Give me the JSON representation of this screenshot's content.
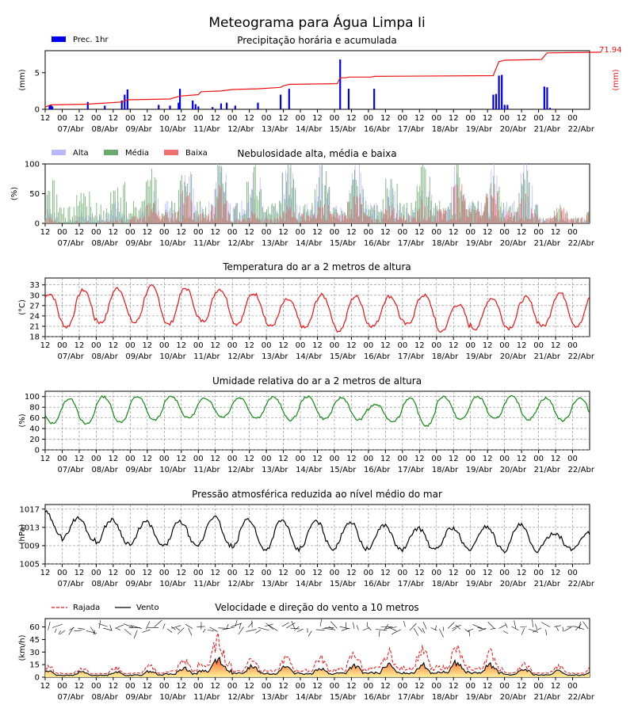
{
  "title": "Meteograma para Água Limpa Ii",
  "x_ticks_hours": [
    "12",
    "00",
    "12",
    "00",
    "12",
    "00",
    "12",
    "00",
    "12",
    "00",
    "12",
    "00",
    "12",
    "00",
    "12",
    "00",
    "12",
    "00",
    "12",
    "00",
    "12",
    "00",
    "12",
    "00",
    "12",
    "00",
    "12",
    "00",
    "12",
    "00",
    "12",
    "00"
  ],
  "x_ticks_dates": [
    "07/Abr",
    "08/Abr",
    "09/Abr",
    "10/Abr",
    "11/Abr",
    "12/Abr",
    "13/Abr",
    "14/Abr",
    "15/Abr",
    "16/Abr",
    "17/Abr",
    "18/Abr",
    "19/Abr",
    "20/Abr",
    "21/Abr",
    "22/Abr"
  ],
  "colors": {
    "precip_bar": "#0000ee",
    "precip_accum": "#ee1111",
    "cloud_high": "#b8b8ff",
    "cloud_mid": "#6aaa6a",
    "cloud_low": "#f07070",
    "temperature": "#ee1111",
    "humidity": "#118811",
    "pressure": "#000000",
    "gust": "#ee1111",
    "wind": "#000000"
  },
  "chart_data": [
    {
      "type": "bar",
      "title": "Precipitação horária e acumulada",
      "ylabel": "(mm)",
      "y2label": "(mm)",
      "accum_total_label": "71.94",
      "legend": [
        "Prec. 1hr"
      ],
      "ylim": [
        0,
        8
      ],
      "yticks": [
        "0",
        "5"
      ],
      "x_start": "2024-04-06T12:00",
      "bars_hour_mm": [
        [
          3,
          0.5
        ],
        [
          4,
          0.6
        ],
        [
          5,
          0.4
        ],
        [
          30,
          1.0
        ],
        [
          42,
          0.5
        ],
        [
          54,
          1.2
        ],
        [
          56,
          2.0
        ],
        [
          58,
          2.7
        ],
        [
          80,
          0.6
        ],
        [
          88,
          0.5
        ],
        [
          94,
          0.9
        ],
        [
          95,
          2.8
        ],
        [
          104,
          1.2
        ],
        [
          106,
          0.7
        ],
        [
          108,
          0.4
        ],
        [
          118,
          0.3
        ],
        [
          124,
          0.8
        ],
        [
          128,
          0.9
        ],
        [
          134,
          0.5
        ],
        [
          150,
          0.9
        ],
        [
          166,
          2.0
        ],
        [
          172,
          2.8
        ],
        [
          208,
          6.8
        ],
        [
          214,
          2.8
        ],
        [
          232,
          2.8
        ],
        [
          316,
          2.0
        ],
        [
          318,
          2.1
        ],
        [
          320,
          4.6
        ],
        [
          322,
          4.7
        ],
        [
          324,
          0.6
        ],
        [
          326,
          0.6
        ],
        [
          352,
          3.1
        ],
        [
          354,
          3.0
        ],
        [
          356,
          0.2
        ]
      ],
      "accum_points_mm": [
        [
          0,
          0.3
        ],
        [
          4,
          0.6
        ],
        [
          30,
          0.7
        ],
        [
          54,
          1.0
        ],
        [
          58,
          1.3
        ],
        [
          88,
          1.4
        ],
        [
          95,
          1.8
        ],
        [
          108,
          2.0
        ],
        [
          110,
          2.4
        ],
        [
          124,
          2.5
        ],
        [
          132,
          2.7
        ],
        [
          150,
          2.8
        ],
        [
          166,
          3.0
        ],
        [
          168,
          3.2
        ],
        [
          172,
          3.4
        ],
        [
          206,
          3.5
        ],
        [
          208,
          4.3
        ],
        [
          212,
          4.3
        ],
        [
          214,
          4.4
        ],
        [
          230,
          4.4
        ],
        [
          232,
          4.5
        ],
        [
          316,
          4.6
        ],
        [
          320,
          6.5
        ],
        [
          324,
          6.7
        ],
        [
          350,
          6.8
        ],
        [
          354,
          7.7
        ],
        [
          392,
          7.8
        ]
      ]
    },
    {
      "type": "bar",
      "title": "Nebulosidade alta, média e baixa",
      "ylabel": "(%)",
      "ylim": [
        0,
        100
      ],
      "yticks": [
        "0",
        "50",
        "100"
      ],
      "series": [
        {
          "name": "Alta",
          "daily_peak_pct": [
            25,
            20,
            45,
            60,
            100,
            100,
            100,
            100,
            100,
            100,
            90,
            70,
            100,
            100,
            100,
            20
          ]
        },
        {
          "name": "Média",
          "daily_peak_pct": [
            85,
            75,
            100,
            100,
            100,
            100,
            100,
            100,
            95,
            100,
            95,
            100,
            100,
            95,
            100,
            30
          ]
        },
        {
          "name": "Baixa",
          "daily_peak_pct": [
            10,
            5,
            10,
            35,
            55,
            60,
            20,
            30,
            45,
            55,
            30,
            40,
            70,
            65,
            60,
            30
          ]
        }
      ]
    },
    {
      "type": "line",
      "title": "Temperatura do ar a 2 metros de altura",
      "ylabel": "(°C)",
      "ylim": [
        18,
        35
      ],
      "yticks": [
        "18",
        "21",
        "24",
        "27",
        "30",
        "33"
      ],
      "series": [
        {
          "max_c": [
            30.5,
            31.5,
            32.0,
            32.5,
            32.0,
            31.8,
            30.5,
            28.7,
            30.0,
            29.7,
            29.7,
            30.0,
            27.3,
            29.2,
            29.3,
            30.7
          ],
          "min_c": [
            20.5,
            20.8,
            22.0,
            22.0,
            21.5,
            22.5,
            21.7,
            21.0,
            20.5,
            19.7,
            21.0,
            21.5,
            19.5,
            20.3,
            20.5,
            21.0
          ]
        }
      ]
    },
    {
      "type": "line",
      "title": "Umidade relativa do ar a 2 metros de altura",
      "ylabel": "(%)",
      "ylim": [
        0,
        110
      ],
      "yticks": [
        "0",
        "20",
        "40",
        "60",
        "80",
        "100"
      ],
      "series": [
        {
          "max_pct": [
            95,
            96,
            100,
            100,
            100,
            97,
            98,
            99,
            100,
            98,
            85,
            97,
            100,
            100,
            100,
            97
          ],
          "min_pct": [
            50,
            48,
            52,
            56,
            60,
            62,
            60,
            56,
            58,
            56,
            54,
            45,
            57,
            58,
            57,
            55
          ]
        }
      ]
    },
    {
      "type": "line",
      "title": "Pressão atmosférica reduzida ao nível médio do mar",
      "ylabel": "(hPa)",
      "ylim": [
        1005,
        1018
      ],
      "yticks": [
        "1005",
        "1009",
        "1013",
        "1017"
      ],
      "series": [
        {
          "max_hpa": [
            1016.5,
            1015.0,
            1014.6,
            1014.2,
            1014.2,
            1015.3,
            1014.8,
            1014.5,
            1014.3,
            1014.2,
            1013.5,
            1012.8,
            1012.9,
            1013.2,
            1013.5,
            1011.8
          ],
          "min_hpa": [
            1011.7,
            1010.2,
            1009.5,
            1009.0,
            1008.8,
            1009.0,
            1008.3,
            1008.0,
            1008.4,
            1008.3,
            1008.2,
            1008.0,
            1008.2,
            1008.2,
            1007.8,
            1008.2
          ]
        }
      ]
    },
    {
      "type": "area",
      "title": "Velocidade e direção do vento a 10 metros",
      "ylabel": "(km/h)",
      "ylim": [
        0,
        70
      ],
      "yticks": [
        "0",
        "15",
        "30",
        "45",
        "60"
      ],
      "legend": [
        "Rajada",
        "Vento"
      ],
      "series": [
        {
          "name": "Rajada",
          "daily_peak_kmh": [
            14,
            12,
            12,
            14,
            22,
            48,
            25,
            25,
            25,
            30,
            33,
            35,
            37,
            32,
            16,
            14
          ]
        },
        {
          "name": "Vento",
          "daily_peak_kmh": [
            8,
            7,
            7,
            8,
            12,
            24,
            14,
            14,
            12,
            15,
            16,
            16,
            19,
            16,
            10,
            8
          ]
        }
      ]
    }
  ]
}
